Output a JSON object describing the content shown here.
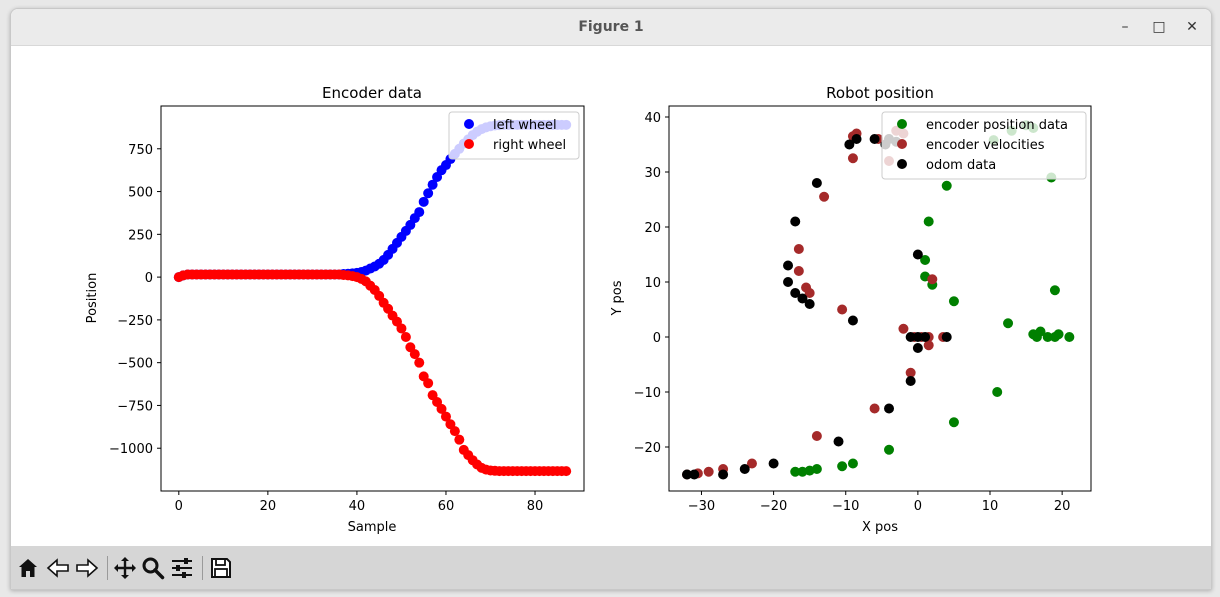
{
  "window": {
    "title": "Figure 1",
    "minimize_glyph": "–",
    "maximize_glyph": "□",
    "close_glyph": "✕"
  },
  "toolbar": {
    "buttons": [
      "home-icon",
      "back-icon",
      "forward-icon",
      "pan-icon",
      "zoom-icon",
      "configure-subplots-icon",
      "save-icon"
    ]
  },
  "chart_data": [
    {
      "type": "scatter",
      "title": "Encoder data",
      "xlabel": "Sample",
      "ylabel": "Position",
      "xlim": [
        -4,
        91
      ],
      "ylim": [
        -1250,
        1000
      ],
      "xticks": [
        0,
        20,
        40,
        60,
        80
      ],
      "yticks": [
        -1000,
        -750,
        -500,
        -250,
        0,
        250,
        500,
        750
      ],
      "ytick_labels": [
        "−1000",
        "−750",
        "−500",
        "−250",
        "0",
        "250",
        "500",
        "750"
      ],
      "legend_position": "top-right",
      "series": [
        {
          "name": "left wheel",
          "color": "#0000ff",
          "x": [
            0,
            1,
            2,
            3,
            4,
            5,
            6,
            7,
            8,
            9,
            10,
            11,
            12,
            13,
            14,
            15,
            16,
            17,
            18,
            19,
            20,
            21,
            22,
            23,
            24,
            25,
            26,
            27,
            28,
            29,
            30,
            31,
            32,
            33,
            34,
            35,
            36,
            37,
            38,
            39,
            40,
            41,
            42,
            43,
            44,
            45,
            46,
            47,
            48,
            49,
            50,
            51,
            52,
            53,
            54,
            55,
            56,
            57,
            58,
            59,
            60,
            61,
            62,
            63,
            64,
            65,
            66,
            67,
            68,
            69,
            70,
            71,
            72,
            73,
            74,
            75,
            76,
            77,
            78,
            79,
            80,
            81,
            82,
            83,
            84,
            85,
            86,
            87
          ],
          "y": [
            0,
            10,
            15,
            15,
            15,
            15,
            15,
            15,
            15,
            15,
            15,
            15,
            15,
            15,
            15,
            15,
            15,
            15,
            15,
            15,
            15,
            15,
            15,
            15,
            15,
            15,
            15,
            15,
            15,
            15,
            15,
            15,
            15,
            15,
            15,
            15,
            15,
            18,
            20,
            22,
            25,
            30,
            38,
            50,
            62,
            78,
            100,
            130,
            165,
            200,
            235,
            270,
            305,
            345,
            380,
            440,
            490,
            540,
            585,
            625,
            655,
            690,
            720,
            750,
            780,
            805,
            830,
            850,
            865,
            875,
            882,
            886,
            888,
            890,
            890,
            890,
            890,
            890,
            890,
            890,
            890,
            890,
            890,
            890,
            890,
            890,
            890,
            890
          ]
        },
        {
          "name": "right wheel",
          "color": "#ff0000",
          "x": [
            0,
            1,
            2,
            3,
            4,
            5,
            6,
            7,
            8,
            9,
            10,
            11,
            12,
            13,
            14,
            15,
            16,
            17,
            18,
            19,
            20,
            21,
            22,
            23,
            24,
            25,
            26,
            27,
            28,
            29,
            30,
            31,
            32,
            33,
            34,
            35,
            36,
            37,
            38,
            39,
            40,
            41,
            42,
            43,
            44,
            45,
            46,
            47,
            48,
            49,
            50,
            51,
            52,
            53,
            54,
            55,
            56,
            57,
            58,
            59,
            60,
            61,
            62,
            63,
            64,
            65,
            66,
            67,
            68,
            69,
            70,
            71,
            72,
            73,
            74,
            75,
            76,
            77,
            78,
            79,
            80,
            81,
            82,
            83,
            84,
            85,
            86,
            87
          ],
          "y": [
            0,
            10,
            15,
            15,
            15,
            15,
            15,
            15,
            15,
            15,
            15,
            15,
            15,
            15,
            15,
            15,
            15,
            15,
            15,
            15,
            15,
            15,
            15,
            15,
            15,
            15,
            15,
            15,
            15,
            15,
            15,
            15,
            15,
            15,
            15,
            15,
            15,
            12,
            10,
            6,
            0,
            -10,
            -25,
            -50,
            -75,
            -110,
            -150,
            -185,
            -225,
            -260,
            -300,
            -350,
            -410,
            -450,
            -500,
            -580,
            -620,
            -690,
            -730,
            -770,
            -815,
            -860,
            -900,
            -950,
            -1010,
            -1040,
            -1070,
            -1095,
            -1115,
            -1125,
            -1130,
            -1132,
            -1134,
            -1134,
            -1134,
            -1134,
            -1134,
            -1134,
            -1134,
            -1134,
            -1134,
            -1134,
            -1134,
            -1134,
            -1134,
            -1134,
            -1134,
            -1134
          ]
        }
      ]
    },
    {
      "type": "scatter",
      "title": "Robot position",
      "xlabel": "X pos",
      "ylabel": "Y pos",
      "xlim": [
        -34.5,
        24
      ],
      "ylim": [
        -28,
        42
      ],
      "xticks": [
        -30,
        -20,
        -10,
        0,
        10,
        20
      ],
      "xtick_labels": [
        "−30",
        "−20",
        "−10",
        "0",
        "10",
        "20"
      ],
      "yticks": [
        -20,
        -10,
        0,
        10,
        20,
        30,
        40
      ],
      "ytick_labels": [
        "−20",
        "−10",
        "0",
        "10",
        "20",
        "30",
        "40"
      ],
      "legend_position": "top-right",
      "series": [
        {
          "name": "encoder position data",
          "color": "#008000",
          "points": [
            [
              21,
              0
            ],
            [
              19.5,
              0.5
            ],
            [
              19,
              0
            ],
            [
              18,
              0
            ],
            [
              17,
              1
            ],
            [
              16.5,
              0
            ],
            [
              16,
              0.5
            ],
            [
              19,
              8.5
            ],
            [
              12.5,
              2.5
            ],
            [
              11,
              -10
            ],
            [
              5,
              -15.5
            ],
            [
              5,
              6.5
            ],
            [
              2,
              9.5
            ],
            [
              1,
              11
            ],
            [
              1,
              14
            ],
            [
              1.5,
              21
            ],
            [
              4,
              27.5
            ],
            [
              10.5,
              35.8
            ],
            [
              13,
              37.5
            ],
            [
              15,
              38.5
            ],
            [
              16,
              38
            ],
            [
              18.5,
              29
            ],
            [
              -4,
              -20.5
            ],
            [
              -9,
              -23
            ],
            [
              -10.5,
              -23.5
            ],
            [
              -14,
              -24
            ],
            [
              -15,
              -24.3
            ],
            [
              -16,
              -24.5
            ],
            [
              -17,
              -24.5
            ]
          ]
        },
        {
          "name": "encoder velocities",
          "color": "#a52a2a",
          "points": [
            [
              -32,
              -25
            ],
            [
              -30.5,
              -24.8
            ],
            [
              -29,
              -24.5
            ],
            [
              -27,
              -24
            ],
            [
              -23,
              -23
            ],
            [
              -14,
              -18
            ],
            [
              -6,
              -13
            ],
            [
              -1,
              -6.5
            ],
            [
              -2,
              1.5
            ],
            [
              -0.5,
              0
            ],
            [
              0.5,
              0
            ],
            [
              1.5,
              -1.5
            ],
            [
              1.5,
              0
            ],
            [
              2,
              10.5
            ],
            [
              3.5,
              0
            ],
            [
              -10.5,
              5
            ],
            [
              -15,
              8
            ],
            [
              -15.5,
              9
            ],
            [
              -16.5,
              12
            ],
            [
              -16.5,
              16
            ],
            [
              -13,
              25.5
            ],
            [
              -9,
              32.5
            ],
            [
              -4,
              32
            ],
            [
              -2,
              37
            ],
            [
              -3,
              37.5
            ],
            [
              -4,
              36
            ],
            [
              -5.5,
              36
            ],
            [
              -9,
              36.5
            ],
            [
              -8.5,
              37
            ]
          ]
        },
        {
          "name": "odom data",
          "color": "#000000",
          "points": [
            [
              -32,
              -25
            ],
            [
              -31,
              -25
            ],
            [
              -27,
              -25
            ],
            [
              -24,
              -24
            ],
            [
              -20,
              -23
            ],
            [
              -11,
              -19
            ],
            [
              -4,
              -13
            ],
            [
              -1,
              -8
            ],
            [
              0,
              -2
            ],
            [
              -1,
              0
            ],
            [
              0,
              0
            ],
            [
              1,
              0
            ],
            [
              4,
              0
            ],
            [
              0,
              15
            ],
            [
              -9,
              3
            ],
            [
              -15,
              6
            ],
            [
              -16,
              7
            ],
            [
              -17,
              8
            ],
            [
              -18,
              10
            ],
            [
              -18,
              13
            ],
            [
              -17,
              21
            ],
            [
              -14,
              28
            ],
            [
              -9.5,
              35
            ],
            [
              -8.5,
              36
            ],
            [
              -6,
              36
            ],
            [
              -4.5,
              35
            ],
            [
              -4,
              36
            ],
            [
              -3,
              35.5
            ]
          ]
        }
      ]
    }
  ]
}
